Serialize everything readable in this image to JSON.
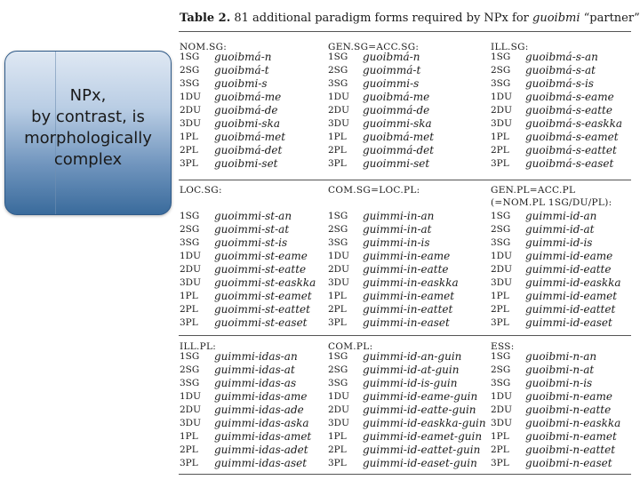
{
  "callout": {
    "text": "NPx,\nby contrast, is\nmorphologically\ncomplex"
  },
  "table": {
    "title_bold": "Table 2.",
    "title_rest": "  81 additional paradigm forms required by NPx for ",
    "title_lemma": "guoibmi",
    "title_gloss": " “partner”",
    "labels": [
      "1SG",
      "2SG",
      "3SG",
      "1DU",
      "2DU",
      "3DU",
      "1PL",
      "2PL",
      "3PL"
    ],
    "sections": [
      {
        "heads": [
          "NOM.SG:",
          "GEN.SG=ACC.SG:",
          "ILL.SG:"
        ],
        "cols": [
          [
            "guoibmá-n",
            "guoibmá-t",
            "guoibmi-s",
            "guoibmá-me",
            "guoibmá-de",
            "guoibmi-ska",
            "guoibmá-met",
            "guoibmá-det",
            "guoibmi-set"
          ],
          [
            "guoibmá-n",
            "guoimmá-t",
            "guoimmi-s",
            "guoibmá-me",
            "guoimmá-de",
            "guoimmi-ska",
            "guoibmá-met",
            "guoimmá-det",
            "guoimmi-set"
          ],
          [
            "guoibmá-s-an",
            "guoibmá-s-at",
            "guoibmá-s-is",
            "guoibmá-s-eame",
            "guoibmá-s-eatte",
            "guoibmá-s-easkka",
            "guoibmá-s-eamet",
            "guoibmá-s-eattet",
            "guoibmá-s-easet"
          ]
        ]
      },
      {
        "heads": [
          "LOC.SG:",
          "COM.SG=LOC.PL:",
          "GEN.PL=ACC.PL"
        ],
        "head3b": "(=NOM.PL 1SG/DU/PL):",
        "cols": [
          [
            "guoimmi-st-an",
            "guoimmi-st-at",
            "guoimmi-st-is",
            "guoimmi-st-eame",
            "guoimmi-st-eatte",
            "guoimmi-st-easkka",
            "guoimmi-st-eamet",
            "guoimmi-st-eattet",
            "guoimmi-st-easet"
          ],
          [
            "guimmi-in-an",
            "guimmi-in-at",
            "guimmi-in-is",
            "guimmi-in-eame",
            "guimmi-in-eatte",
            "guimmi-in-easkka",
            "guimmi-in-eamet",
            "guimmi-in-eattet",
            "guimmi-in-easet"
          ],
          [
            "guimmi-id-an",
            "guimmi-id-at",
            "guimmi-id-is",
            "guimmi-id-eame",
            "guimmi-id-eatte",
            "guimmi-id-easkka",
            "guimmi-id-eamet",
            "guimmi-id-eattet",
            "guimmi-id-easet"
          ]
        ]
      },
      {
        "heads": [
          "ILL.PL:",
          "COM.PL:",
          "ESS:"
        ],
        "cols": [
          [
            "guimmi-idas-an",
            "guimmi-idas-at",
            "guimmi-idas-as",
            "guimmi-idas-ame",
            "guimmi-idas-ade",
            "guimmi-idas-aska",
            "guimmi-idas-amet",
            "guimmi-idas-adet",
            "guimmi-idas-aset"
          ],
          [
            "guimmi-id-an-guin",
            "guimmi-id-at-guin",
            "guimmi-id-is-guin",
            "guimmi-id-eame-guin",
            "guimmi-id-eatte-guin",
            "guimmi-id-easkka-guin",
            "guimmi-id-eamet-guin",
            "guimmi-id-eattet-guin",
            "guimmi-id-easet-guin"
          ],
          [
            "guoibmi-n-an",
            "guoibmi-n-at",
            "guoibmi-n-is",
            "guoibmi-n-eame",
            "guoibmi-n-eatte",
            "guoibmi-n-easkka",
            "guoibmi-n-eamet",
            "guoibmi-n-eattet",
            "guoibmi-n-easet"
          ]
        ]
      }
    ]
  }
}
